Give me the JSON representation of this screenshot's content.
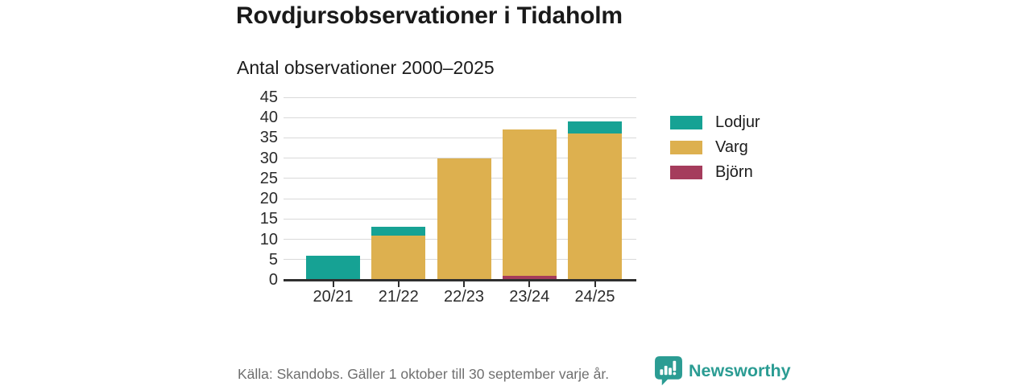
{
  "chart_data": {
    "type": "bar",
    "stacked": true,
    "title": "Rovdjursobservationer i Tidaholm",
    "subtitle": "Antal observationer 2000–2025",
    "categories": [
      "20/21",
      "21/22",
      "22/23",
      "23/24",
      "24/25"
    ],
    "series": [
      {
        "name": "Björn",
        "color": "#a53c5c",
        "values": [
          0,
          0,
          0,
          1,
          0
        ]
      },
      {
        "name": "Varg",
        "color": "#ddb04f",
        "values": [
          0,
          11,
          30,
          36,
          36
        ]
      },
      {
        "name": "Lodjur",
        "color": "#16a294",
        "values": [
          6,
          2,
          0,
          0,
          3
        ]
      }
    ],
    "xlabel": "",
    "ylabel": "",
    "ylim": [
      0,
      45
    ],
    "yticks": [
      0,
      5,
      10,
      15,
      20,
      25,
      30,
      35,
      40,
      45
    ],
    "grid": true,
    "legend": {
      "position": "right",
      "order": [
        "Lodjur",
        "Varg",
        "Björn"
      ]
    }
  },
  "footer": {
    "source": "Källa: Skandobs. Gäller 1 oktober till 30 september varje år.",
    "brand": "Newsworthy",
    "brand_color": "#2b9c93"
  }
}
